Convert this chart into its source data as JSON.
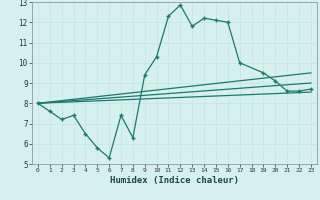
{
  "xlabel": "Humidex (Indice chaleur)",
  "bg_color": "#d6f0ee",
  "grid_color": "#c8e8e4",
  "line_color": "#1a7a6e",
  "xlim": [
    -0.5,
    23.5
  ],
  "ylim": [
    5,
    13
  ],
  "yticks": [
    5,
    6,
    7,
    8,
    9,
    10,
    11,
    12,
    13
  ],
  "xticks": [
    0,
    1,
    2,
    3,
    4,
    5,
    6,
    7,
    8,
    9,
    10,
    11,
    12,
    13,
    14,
    15,
    16,
    17,
    18,
    19,
    20,
    21,
    22,
    23
  ],
  "main_x": [
    0,
    1,
    2,
    3,
    4,
    5,
    6,
    7,
    8,
    9,
    10,
    11,
    12,
    13,
    14,
    15,
    16,
    17,
    19,
    20,
    21,
    22,
    23
  ],
  "main_y": [
    8.0,
    7.6,
    7.2,
    7.4,
    6.5,
    5.8,
    5.3,
    7.4,
    6.3,
    9.4,
    10.3,
    12.3,
    12.85,
    11.8,
    12.2,
    12.1,
    12.0,
    10.0,
    9.5,
    9.1,
    8.6,
    8.6,
    8.7
  ],
  "line1_x": [
    0,
    23
  ],
  "line1_y": [
    8.0,
    8.55
  ],
  "line2_x": [
    0,
    23
  ],
  "line2_y": [
    8.0,
    9.0
  ],
  "line3_x": [
    0,
    23
  ],
  "line3_y": [
    8.0,
    9.5
  ]
}
